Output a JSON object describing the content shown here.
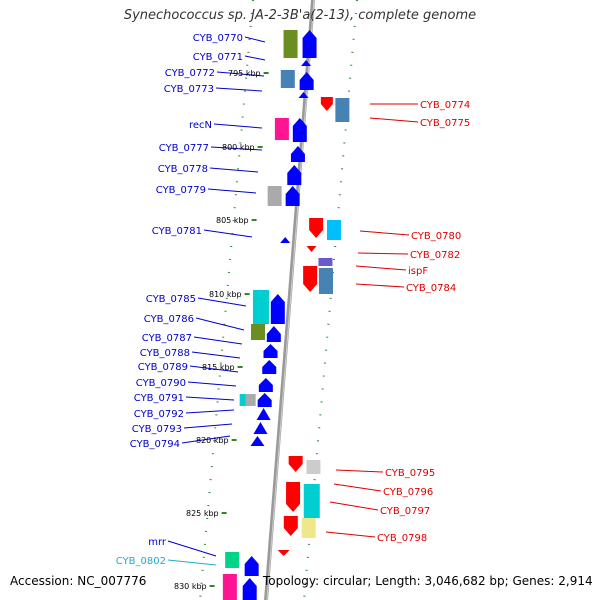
{
  "title": "Synechococcus sp. JA-2-3B'a(2-13), complete genome",
  "accession_label": "Accession: NC_007776",
  "summary_label": "Topology: circular; Length: 3,046,682 bp; Genes: 2,914",
  "colors": {
    "left_label": "#0000cc",
    "right_label": "#dd0000",
    "highlight_label": "#22aacc",
    "tick": "#2a8a2a",
    "backbone": "#888888"
  },
  "kbp_marks": [
    "795 kbp",
    "800 kbp",
    "805 kbp",
    "810 kbp",
    "815 kbp",
    "820 kbp",
    "825 kbp",
    "830 kbp"
  ],
  "left_labels": [
    "CYB_0770",
    "CYB_0771",
    "CYB_0772",
    "CYB_0773",
    "recN",
    "CYB_0777",
    "CYB_0778",
    "CYB_0779",
    "CYB_0781",
    "CYB_0785",
    "CYB_0786",
    "CYB_0787",
    "CYB_0788",
    "CYB_0789",
    "CYB_0790",
    "CYB_0791",
    "CYB_0792",
    "CYB_0793",
    "CYB_0794",
    "mrr",
    "CYB_0802"
  ],
  "right_labels": [
    "CYB_0774",
    "CYB_0775",
    "CYB_0780",
    "CYB_0782",
    "ispF",
    "CYB_0784",
    "CYB_0795",
    "CYB_0796",
    "CYB_0797",
    "CYB_0798"
  ]
}
